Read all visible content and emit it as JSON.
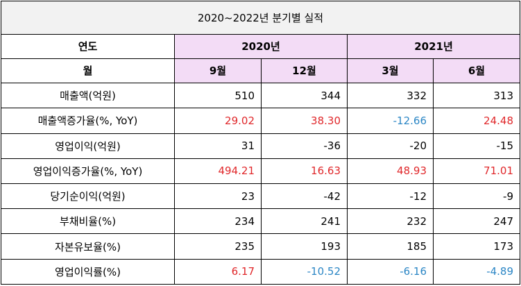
{
  "title": "2020~2022년 분기별 실적",
  "header": {
    "year_label": "연도",
    "month_label": "월",
    "years": [
      "2020년",
      "2021년"
    ],
    "months": [
      "9월",
      "12월",
      "3월",
      "6월"
    ]
  },
  "colors": {
    "header_highlight": "#f3dcf6",
    "title_background": "#f2f2f2",
    "positive_rate": "#e0272a",
    "negative_rate": "#2b86c5"
  },
  "rows": [
    {
      "label": "매출액(억원)",
      "values": [
        "510",
        "344",
        "332",
        "313"
      ],
      "colored": false
    },
    {
      "label": "매출액증가율(%, YoY)",
      "values": [
        "29.02",
        "38.30",
        "-12.66",
        "24.48"
      ],
      "colored": true
    },
    {
      "label": "영업이익(억원)",
      "values": [
        "31",
        "-36",
        "-20",
        "-15"
      ],
      "colored": false
    },
    {
      "label": "영업이익증가율(%, YoY)",
      "values": [
        "494.21",
        "16.63",
        "48.93",
        "71.01"
      ],
      "colored": true
    },
    {
      "label": "당기순이익(억원)",
      "values": [
        "23",
        "-42",
        "-12",
        "-9"
      ],
      "colored": false
    },
    {
      "label": "부채비율(%)",
      "values": [
        "234",
        "241",
        "232",
        "247"
      ],
      "colored": false
    },
    {
      "label": "자본유보율(%)",
      "values": [
        "235",
        "193",
        "185",
        "173"
      ],
      "colored": false
    },
    {
      "label": "영업이익률(%)",
      "values": [
        "6.17",
        "-10.52",
        "-6.16",
        "-4.89"
      ],
      "colored": true
    }
  ]
}
